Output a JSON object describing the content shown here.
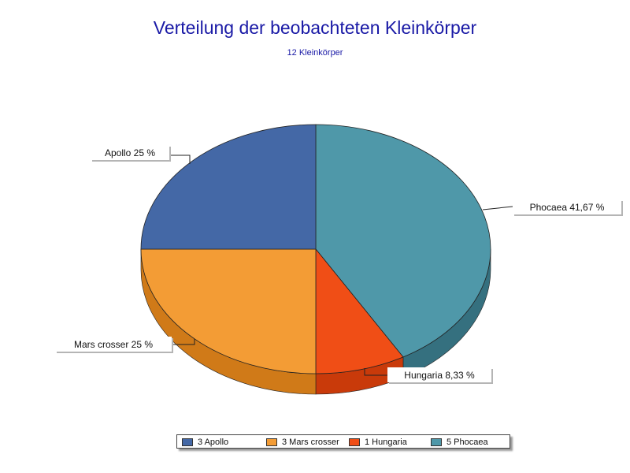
{
  "chart_data": {
    "type": "pie",
    "title": "Verteilung der beobachteten Kleinkörper",
    "subtitle": "12 Kleinkörper",
    "slices": [
      {
        "label": "Phocaea",
        "count": 5,
        "percent_label": "41,67 %",
        "value": 41.67,
        "color": "#4f98a9",
        "side_color": "#35707f",
        "legend_label": "5 Phocaea"
      },
      {
        "label": "Hungaria",
        "count": 1,
        "percent_label": "8,33 %",
        "value": 8.33,
        "color": "#f04e16",
        "side_color": "#c93a0a",
        "legend_label": "1 Hungaria"
      },
      {
        "label": "Mars crosser",
        "count": 3,
        "percent_label": "25 %",
        "value": 25,
        "color": "#f39c35",
        "side_color": "#d07a18",
        "legend_label": "3 Mars crosser"
      },
      {
        "label": "Apollo",
        "count": 3,
        "percent_label": "25 %",
        "value": 25,
        "color": "#4468a6",
        "side_color": "#2f4c80",
        "legend_label": "3 Apollo"
      }
    ],
    "legend_order": [
      3,
      2,
      1,
      0
    ],
    "legend_placement": "bottom"
  }
}
